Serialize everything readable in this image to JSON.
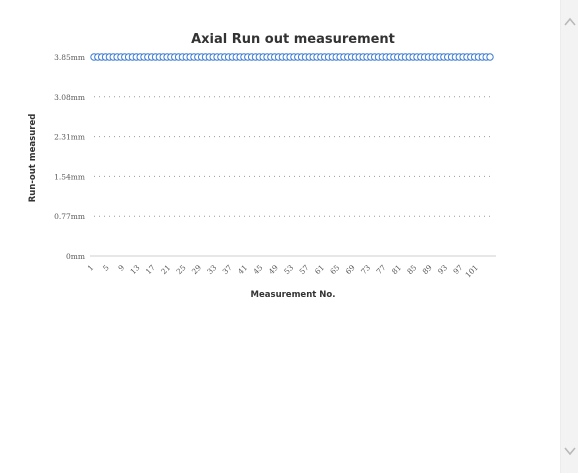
{
  "chart_data": {
    "type": "scatter",
    "title": "Axial Run out measurement",
    "xlabel": "Measurement No.",
    "ylabel": "Run-out measured",
    "y_ticks": [
      "0mm",
      "0.77mm",
      "1.54mm",
      "2.31mm",
      "3.08mm",
      "3.85mm"
    ],
    "ylim": [
      0,
      3.85
    ],
    "x_ticks": [
      "1",
      "5",
      "9",
      "13",
      "17",
      "21",
      "25",
      "29",
      "33",
      "37",
      "41",
      "45",
      "49",
      "53",
      "57",
      "61",
      "65",
      "69",
      "73",
      "77",
      "81",
      "85",
      "89",
      "93",
      "97",
      "101"
    ],
    "xlim": [
      1,
      104
    ],
    "grid": "dotted-horizontal",
    "marker": "open-circle",
    "series": [
      {
        "color": "#3a7bd5",
        "x": [
          1,
          2,
          3,
          4,
          5,
          6,
          7,
          8,
          9,
          10,
          11,
          12,
          13,
          14,
          15,
          16,
          17,
          18,
          19,
          20,
          21,
          22,
          23,
          24,
          25,
          26,
          27,
          28,
          29,
          30,
          31,
          32,
          33,
          34,
          35,
          36,
          37,
          38,
          39,
          40,
          41,
          42,
          43,
          44,
          45,
          46,
          47,
          48,
          49,
          50,
          51,
          52,
          53,
          54,
          55,
          56,
          57,
          58,
          59,
          60,
          61,
          62,
          63,
          64,
          65,
          66,
          67,
          68,
          69,
          70,
          71,
          72,
          73,
          74,
          75,
          76,
          77,
          78,
          79,
          80,
          81,
          82,
          83,
          84,
          85,
          86,
          87,
          88,
          89,
          90,
          91,
          92,
          93,
          94,
          95,
          96,
          97,
          98,
          99,
          100,
          101,
          102,
          103,
          104
        ],
        "y": [
          3.85,
          3.85,
          3.85,
          3.85,
          3.85,
          3.85,
          3.85,
          3.85,
          3.85,
          3.85,
          3.85,
          3.85,
          3.85,
          3.85,
          3.85,
          3.85,
          3.85,
          3.85,
          3.85,
          3.85,
          3.85,
          3.85,
          3.85,
          3.85,
          3.85,
          3.85,
          3.85,
          3.85,
          3.85,
          3.85,
          3.85,
          3.85,
          3.85,
          3.85,
          3.85,
          3.85,
          3.85,
          3.85,
          3.85,
          3.85,
          3.85,
          3.85,
          3.85,
          3.85,
          3.85,
          3.85,
          3.85,
          3.85,
          3.85,
          3.85,
          3.85,
          3.85,
          3.85,
          3.85,
          3.85,
          3.85,
          3.85,
          3.85,
          3.85,
          3.85,
          3.85,
          3.85,
          3.85,
          3.85,
          3.85,
          3.85,
          3.85,
          3.85,
          3.85,
          3.85,
          3.85,
          3.85,
          3.85,
          3.85,
          3.85,
          3.85,
          3.85,
          3.85,
          3.85,
          3.85,
          3.85,
          3.85,
          3.85,
          3.85,
          3.85,
          3.85,
          3.85,
          3.85,
          3.85,
          3.85,
          3.85,
          3.85,
          3.85,
          3.85,
          3.85,
          3.85,
          3.85,
          3.85,
          3.85,
          3.85,
          3.85,
          3.85,
          3.85,
          3.85
        ]
      }
    ]
  },
  "colors": {
    "series": "#3a7bd5",
    "grid": "#9a9a9a",
    "axis": "#cfcfcf",
    "text": "#333333",
    "tick_text": "#595959"
  },
  "scrollbar": {
    "up_icon": "chevron-up-icon",
    "down_icon": "chevron-down-icon"
  }
}
